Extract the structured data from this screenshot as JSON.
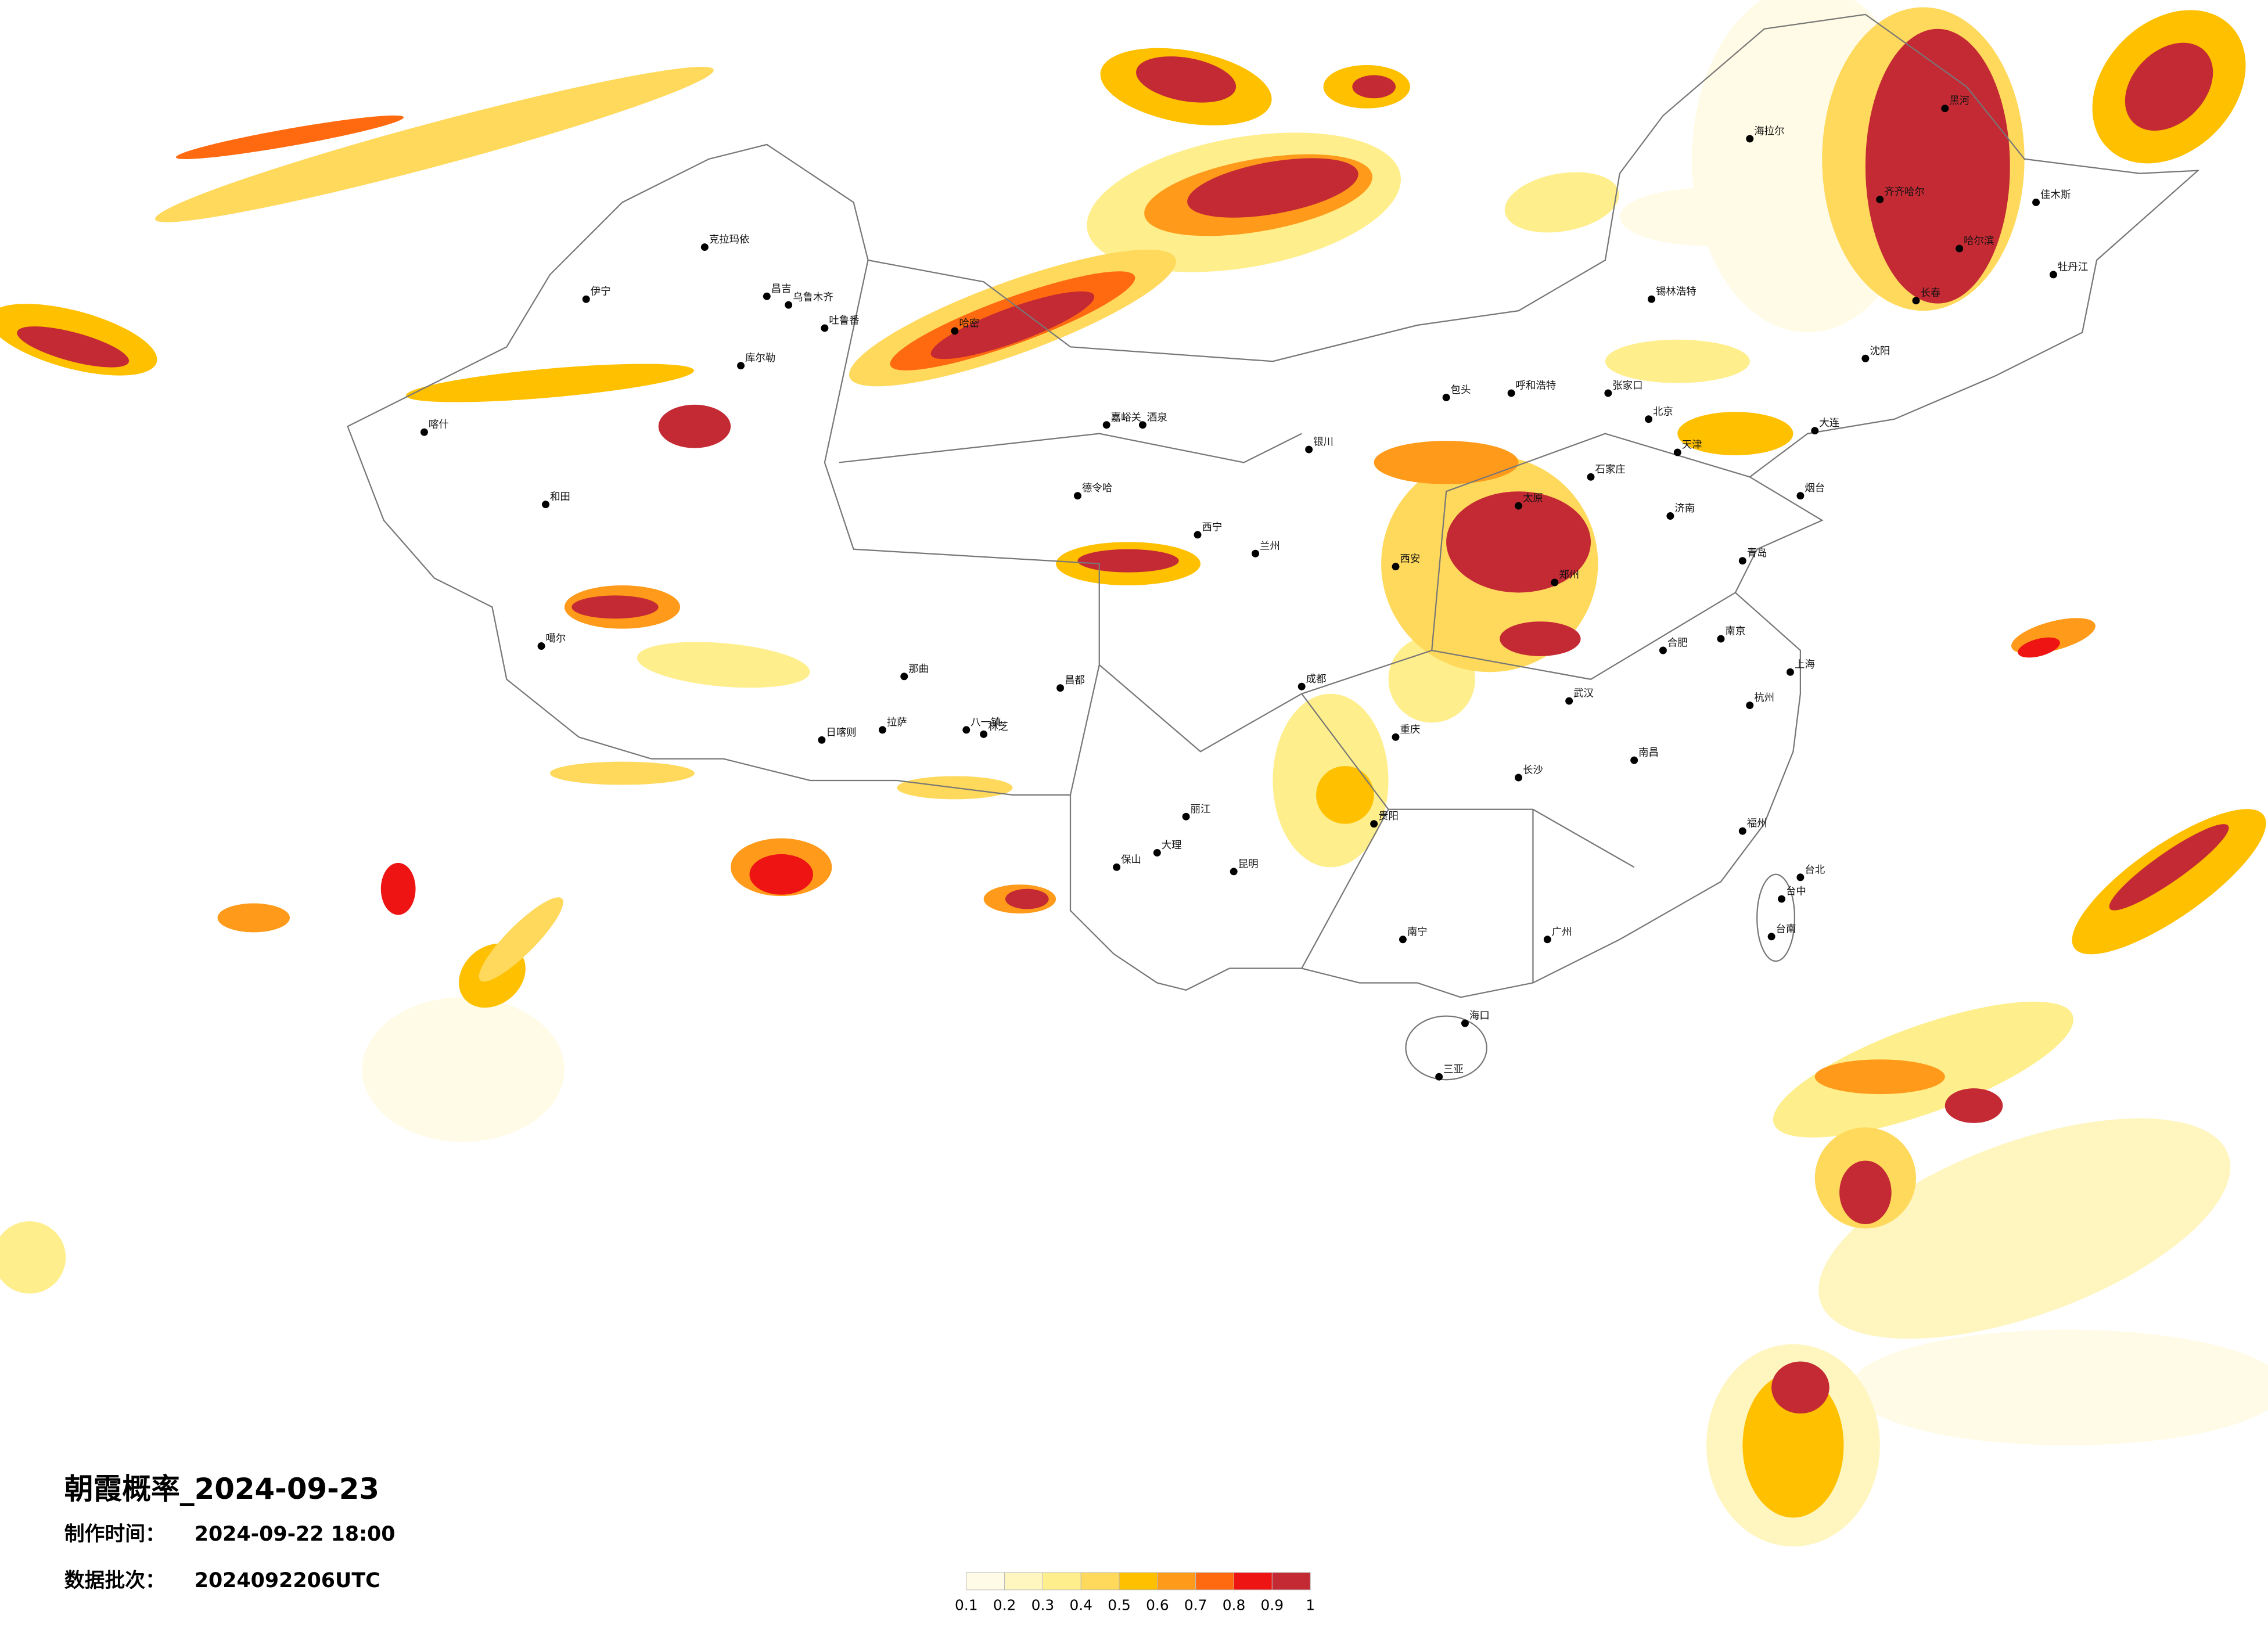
{
  "map": {
    "title": "朝霞概率_2024-09-23",
    "made_label": "制作时间：",
    "made_time": "2024-09-22 18:00",
    "batch_label": "数据批次：",
    "batch": "2024092206UTC",
    "cities": [
      "克拉玛依",
      "伊宁",
      "昌吉",
      "乌鲁木齐",
      "吐鲁番",
      "哈密",
      "库尔勒",
      "喀什",
      "和田",
      "噶尔",
      "日喀则",
      "拉萨",
      "八一镇",
      "林芝",
      "那曲",
      "昌都",
      "德令哈",
      "嘉峪关",
      "酒泉",
      "西宁",
      "兰州",
      "银川",
      "呼和浩特",
      "包头",
      "北京",
      "天津",
      "石家庄",
      "太原",
      "济南",
      "郑州",
      "西安",
      "成都",
      "重庆",
      "贵阳",
      "昆明",
      "南宁",
      "广州",
      "长沙",
      "武汉",
      "南昌",
      "合肥",
      "南京",
      "上海",
      "杭州",
      "福州",
      "台北",
      "台中",
      "台南",
      "海口",
      "三亚",
      "哈尔滨",
      "长春",
      "沈阳",
      "大连",
      "海拉尔",
      "齐齐哈尔",
      "黑河",
      "佳木斯",
      "牡丹江",
      "锡林浩特",
      "张家口",
      "青岛",
      "烟台",
      "丽江",
      "大理",
      "保山"
    ],
    "legend": {
      "colors": [
        "#fffbe6",
        "#fff5bf",
        "#ffee8c",
        "#ffd95c",
        "#ffc000",
        "#ff9a1a",
        "#ff6a10",
        "#ee1414",
        "#c42a34"
      ],
      "ticks": [
        0.1,
        0.2,
        0.3,
        0.4,
        0.5,
        0.6,
        0.7,
        0.8,
        0.9,
        1
      ]
    }
  }
}
